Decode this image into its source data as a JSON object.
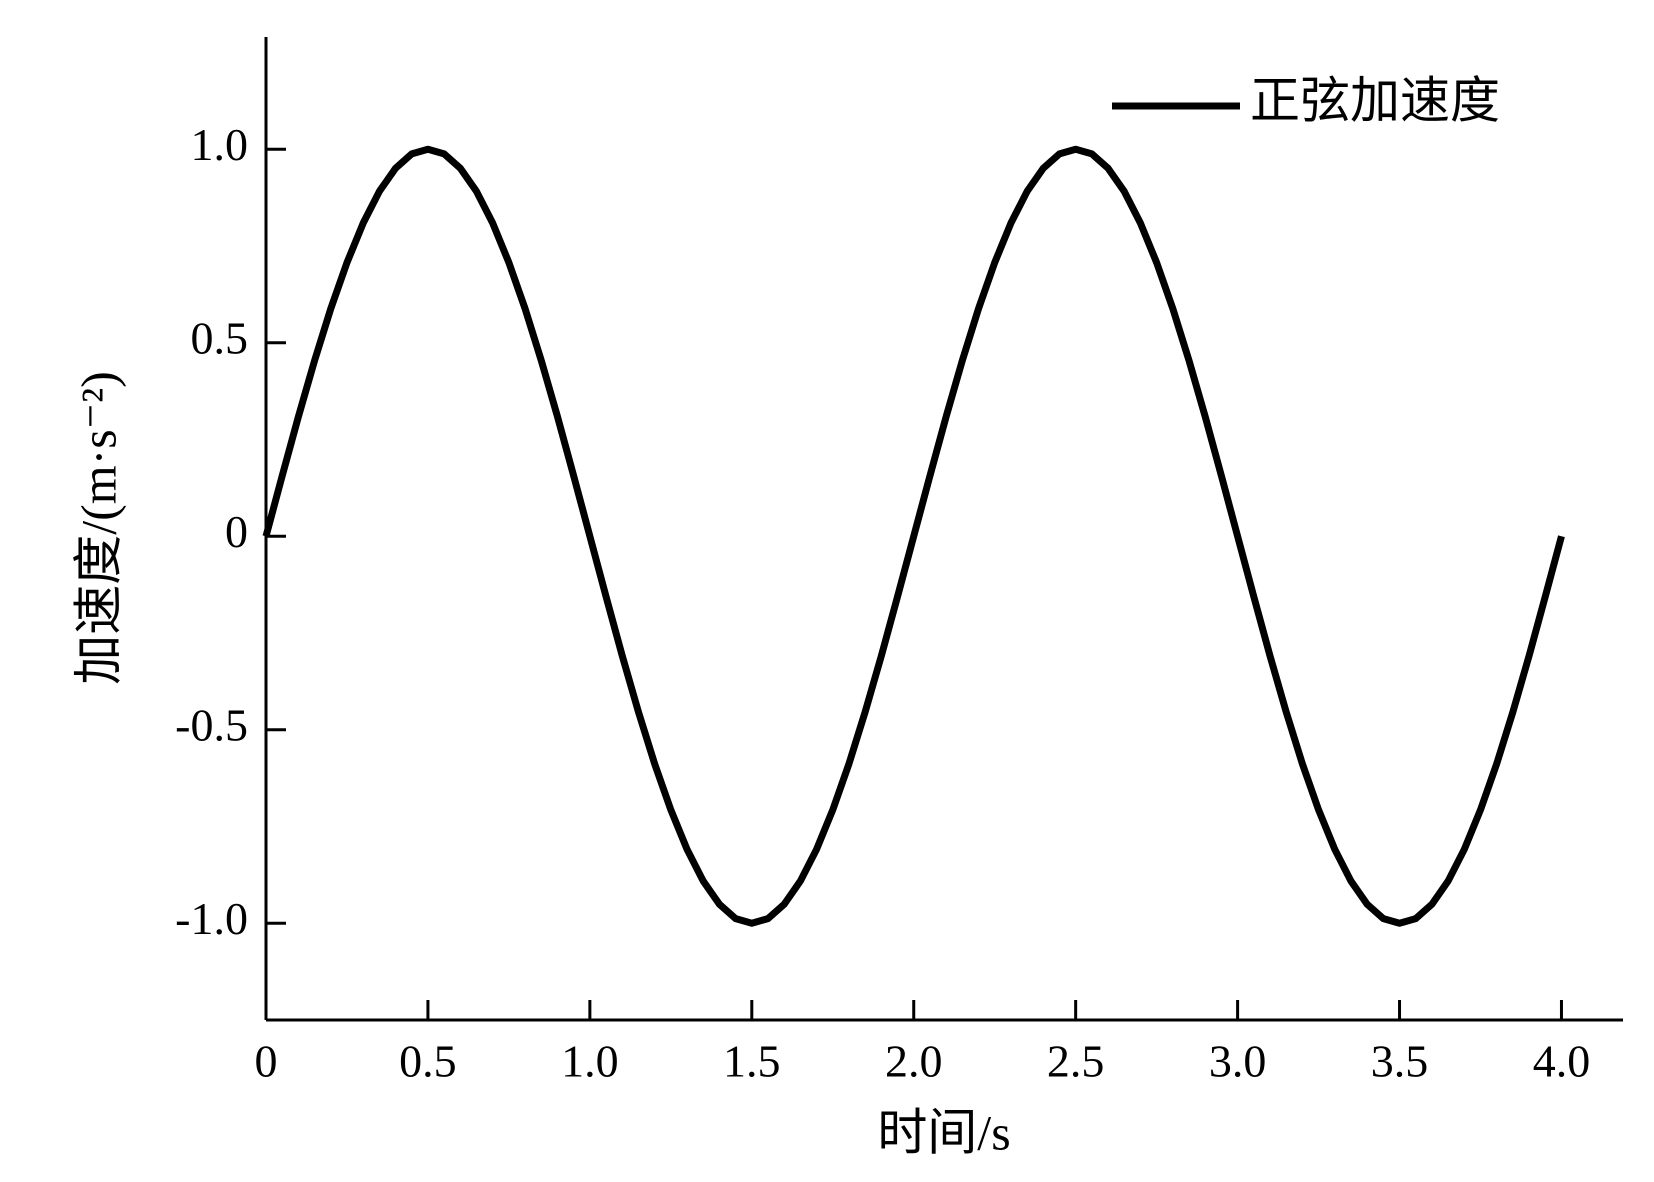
{
  "chart_data": {
    "type": "line",
    "xlabel": "时间/s",
    "ylabel": "加速度/(m·s⁻²)",
    "x": [
      0,
      0.05,
      0.1,
      0.15,
      0.2,
      0.25,
      0.3,
      0.35,
      0.4,
      0.45,
      0.5,
      0.55,
      0.6,
      0.65,
      0.7,
      0.75,
      0.8,
      0.85,
      0.9,
      0.95,
      1,
      1.05,
      1.1,
      1.15,
      1.2,
      1.25,
      1.3,
      1.35,
      1.4,
      1.45,
      1.5,
      1.55,
      1.6,
      1.65,
      1.7,
      1.75,
      1.8,
      1.85,
      1.9,
      1.95,
      2,
      2.05,
      2.1,
      2.15,
      2.2,
      2.25,
      2.3,
      2.35,
      2.4,
      2.45,
      2.5,
      2.55,
      2.6,
      2.65,
      2.7,
      2.75,
      2.8,
      2.85,
      2.9,
      2.95,
      3,
      3.05,
      3.1,
      3.15,
      3.2,
      3.25,
      3.3,
      3.35,
      3.4,
      3.45,
      3.5,
      3.55,
      3.6,
      3.65,
      3.7,
      3.75,
      3.8,
      3.85,
      3.9,
      3.95,
      4
    ],
    "series": [
      {
        "name": "正弦加速度",
        "color": "#000000",
        "values": [
          0,
          0.156,
          0.309,
          0.454,
          0.588,
          0.707,
          0.809,
          0.891,
          0.951,
          0.988,
          1,
          0.988,
          0.951,
          0.891,
          0.809,
          0.707,
          0.588,
          0.454,
          0.309,
          0.156,
          0,
          -0.156,
          -0.309,
          -0.454,
          -0.588,
          -0.707,
          -0.809,
          -0.891,
          -0.951,
          -0.988,
          -1,
          -0.988,
          -0.951,
          -0.891,
          -0.809,
          -0.707,
          -0.588,
          -0.454,
          -0.309,
          -0.156,
          0,
          0.156,
          0.309,
          0.454,
          0.588,
          0.707,
          0.809,
          0.891,
          0.951,
          0.988,
          1,
          0.988,
          0.951,
          0.891,
          0.809,
          0.707,
          0.588,
          0.454,
          0.309,
          0.156,
          0,
          -0.156,
          -0.309,
          -0.454,
          -0.588,
          -0.707,
          -0.809,
          -0.891,
          -0.951,
          -0.988,
          -1,
          -0.988,
          -0.951,
          -0.891,
          -0.809,
          -0.707,
          -0.588,
          -0.454,
          -0.309,
          -0.156,
          0
        ]
      }
    ],
    "xlim": [
      0,
      4.19
    ],
    "ylim": [
      -1.25,
      1.29
    ],
    "xticks": [
      0,
      0.5,
      {
        "value": 1,
        "label": "1.0"
      },
      1.5,
      {
        "value": 2,
        "label": "2.0"
      },
      2.5,
      {
        "value": 3,
        "label": "3.0"
      },
      3.5,
      {
        "value": 4,
        "label": "4.0"
      }
    ],
    "yticks": [
      {
        "value": -1,
        "label": "-1.0"
      },
      -0.5,
      0,
      0.5,
      {
        "value": 1,
        "label": "1.0"
      }
    ],
    "grid": false,
    "legend": "upper right"
  }
}
